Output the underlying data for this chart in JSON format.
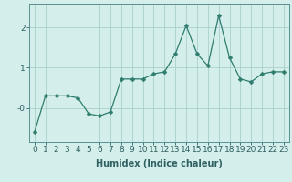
{
  "x": [
    0,
    1,
    2,
    3,
    4,
    5,
    6,
    7,
    8,
    9,
    10,
    11,
    12,
    13,
    14,
    15,
    16,
    17,
    18,
    19,
    20,
    21,
    22,
    23
  ],
  "y": [
    -0.6,
    0.3,
    0.3,
    0.3,
    0.25,
    -0.15,
    -0.2,
    -0.1,
    0.72,
    0.72,
    0.72,
    0.85,
    0.9,
    1.35,
    2.05,
    1.35,
    1.05,
    2.3,
    1.25,
    0.72,
    0.65,
    0.85,
    0.9,
    0.9
  ],
  "line_color": "#2e7d6e",
  "marker": "D",
  "marker_size": 2.5,
  "bg_color": "#d4eeeb",
  "grid_color": "#aacfcc",
  "xlabel": "Humidex (Indice chaleur)",
  "xlim": [
    -0.5,
    23.5
  ],
  "ylim": [
    -0.85,
    2.6
  ],
  "ytick_vals": [
    0.0,
    1.0,
    2.0
  ],
  "ytick_labels": [
    "-0",
    "1",
    "2"
  ],
  "xtick_labels": [
    "0",
    "1",
    "2",
    "3",
    "4",
    "5",
    "6",
    "7",
    "8",
    "9",
    "10",
    "11",
    "12",
    "13",
    "14",
    "15",
    "16",
    "17",
    "18",
    "19",
    "20",
    "21",
    "22",
    "23"
  ],
  "font_color": "#2e6060",
  "spine_color": "#5a9090",
  "label_fontsize": 7,
  "tick_fontsize": 6.5
}
